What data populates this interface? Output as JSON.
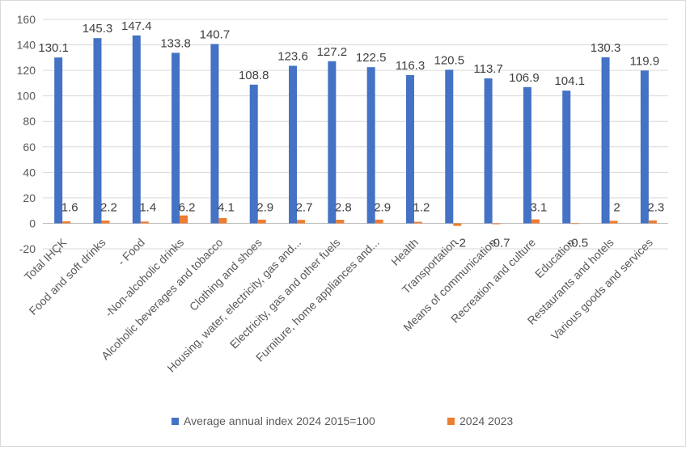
{
  "chart_data": {
    "type": "bar",
    "title": "",
    "xlabel": "",
    "ylabel": "",
    "ylim": [
      -20,
      160
    ],
    "yticks": [
      -20,
      0,
      20,
      40,
      60,
      80,
      100,
      120,
      140,
      160
    ],
    "grid": true,
    "legend_position": "bottom",
    "categories": [
      "Total IHÇK",
      "Food and soft drinks",
      "- Food",
      "-Non-alcoholic drinks",
      "Alcoholic beverages and tobacco",
      "Clothing and shoes",
      "Housing, water, electricity, gas and...",
      "Electricity, gas and other fuels",
      "Furniture, home appliances and...",
      "Health",
      "Transportation",
      "Means of communication",
      "Recreation and culture",
      "Education",
      "Restaurants and hotels",
      "Various goods and services"
    ],
    "series": [
      {
        "name": "Average annual index 2024  2015=100",
        "color": "#4472C4",
        "values": [
          130.1,
          145.3,
          147.4,
          133.8,
          140.7,
          108.8,
          123.6,
          127.2,
          122.5,
          116.3,
          120.5,
          113.7,
          106.9,
          104.1,
          130.3,
          119.9
        ],
        "labels": [
          "130.1",
          "145.3",
          "147.4",
          "133.8",
          "140.7",
          "108.8",
          "123.6",
          "127.2",
          "122.5",
          "116.3",
          "120.5",
          "113.7",
          "106.9",
          "104.1",
          "130.3",
          "119.9"
        ]
      },
      {
        "name": "2024 2023",
        "color": "#ED7D31",
        "values": [
          1.6,
          2.2,
          1.4,
          6.2,
          4.1,
          2.9,
          2.7,
          2.8,
          2.9,
          1.2,
          -2,
          -0.7,
          3.1,
          -0.5,
          2,
          2.3
        ],
        "labels": [
          "1.6",
          "2.2",
          "1.4",
          "6.2",
          "4.1",
          "2.9",
          "2.7",
          "2.8",
          "2.9",
          "1.2",
          "-2",
          "-0.7",
          "3.1",
          "-0.5",
          "2",
          "2.3"
        ]
      }
    ]
  }
}
